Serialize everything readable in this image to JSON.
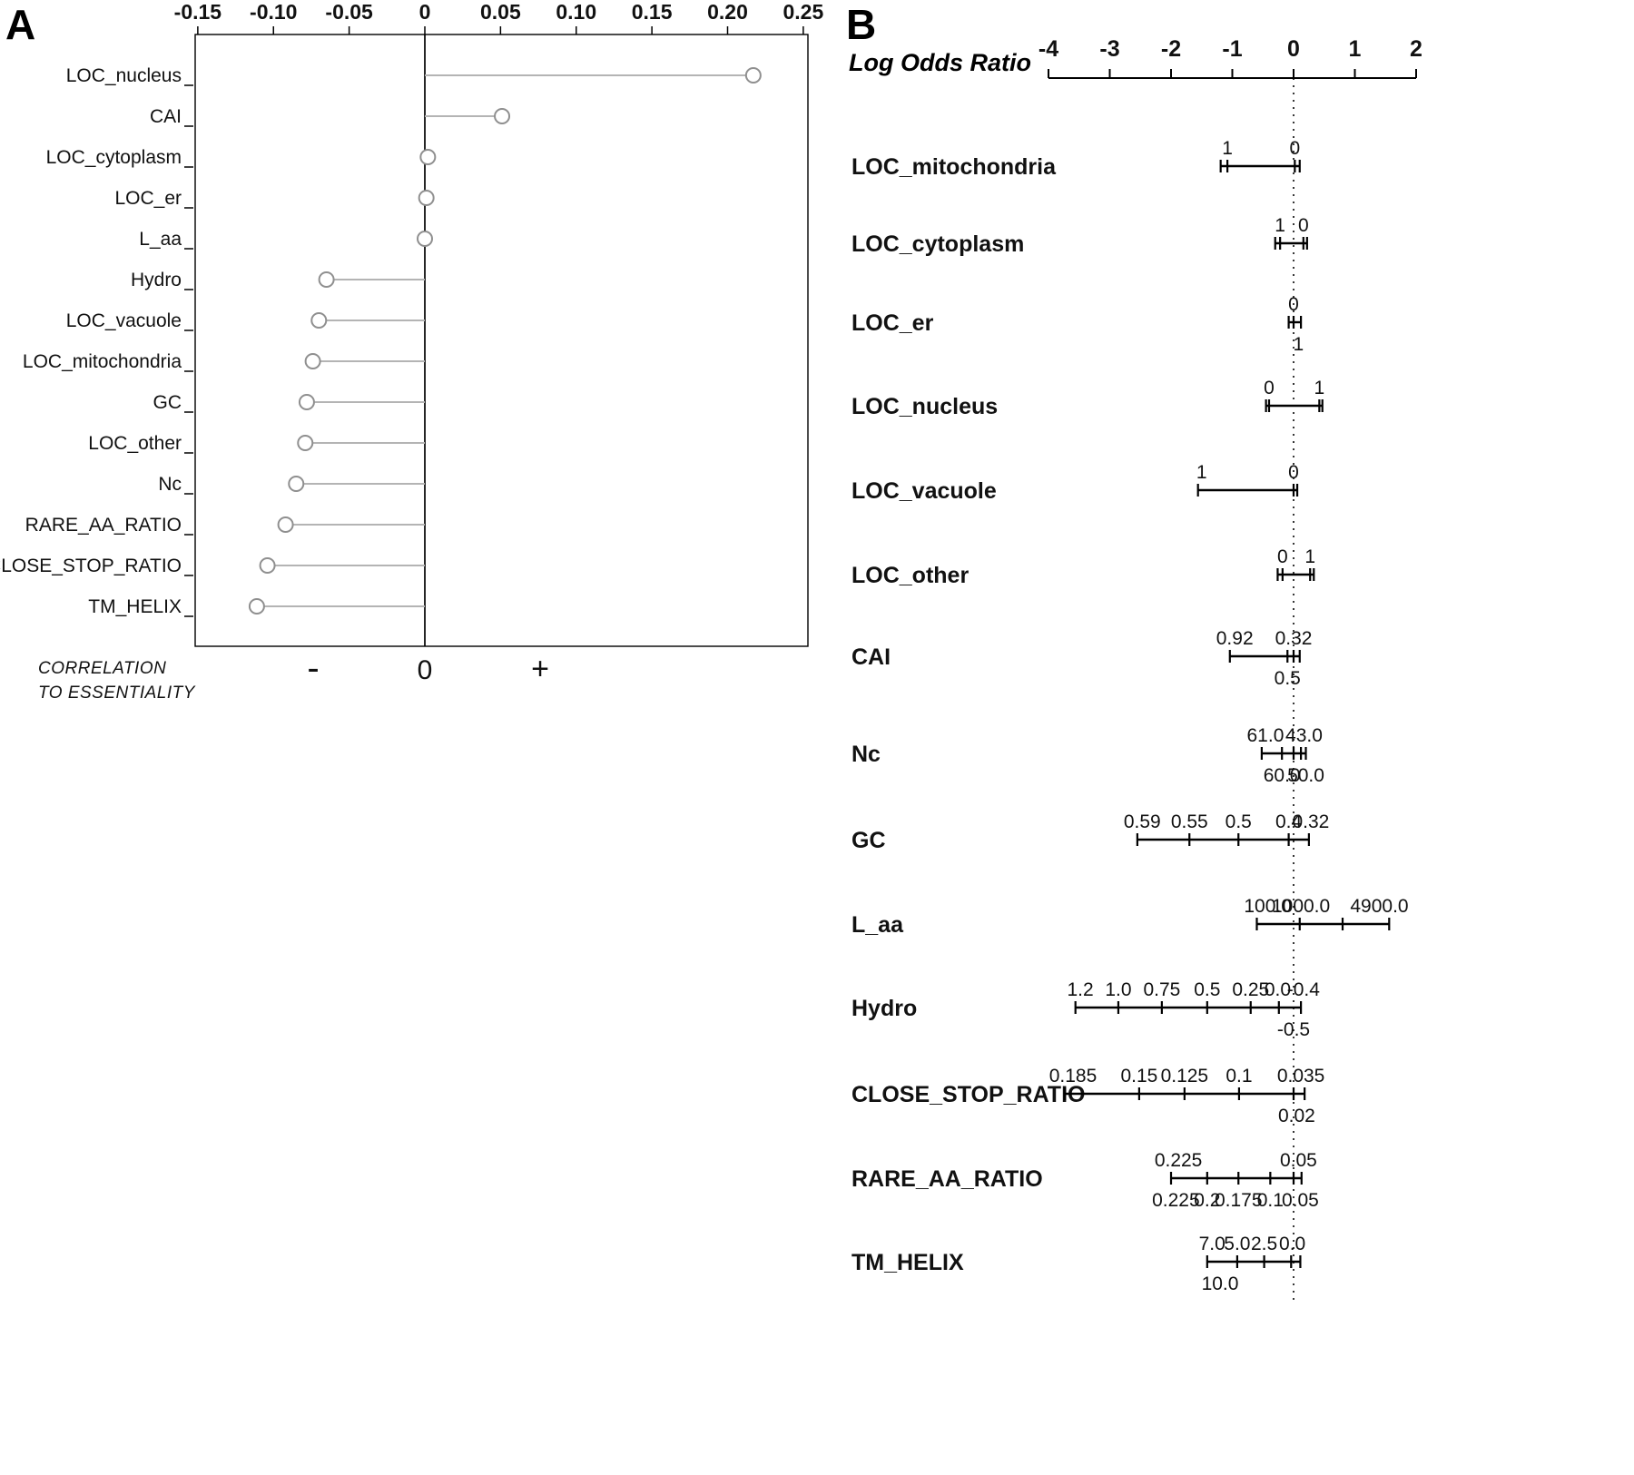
{
  "figure": {
    "panel_a_label": "A",
    "panel_b_label": "B"
  },
  "panel_a": {
    "caption_line1": "CORRELATION",
    "caption_line2": "TO ESSENTIALITY",
    "sign_minus": "-",
    "sign_zero": "0",
    "sign_plus": "+"
  },
  "panel_b": {
    "title": "Log Odds Ratio"
  },
  "colors": {
    "stem": "#b4b4b4",
    "marker_stroke": "#8f8f8f",
    "axis": "#000000"
  },
  "chart_data": [
    {
      "type": "scatter",
      "subtype": "horizontal-lollipop",
      "panel": "A",
      "title": "Correlation to essentiality",
      "xlabel": "CORRELATION TO ESSENTIALITY",
      "xlim": [
        -0.152,
        0.253
      ],
      "xticks": [
        -0.15,
        -0.1,
        -0.05,
        0,
        0.05,
        0.1,
        0.15,
        0.2,
        0.25
      ],
      "xtick_labels": [
        "-0.15",
        "-0.10",
        "-0.05",
        "0",
        "0.05",
        "0.10",
        "0.15",
        "0.20",
        "0.25"
      ],
      "grid": false,
      "categories": [
        "LOC_nucleus",
        "CAI",
        "LOC_cytoplasm",
        "LOC_er",
        "L_aa",
        "Hydro",
        "LOC_vacuole",
        "LOC_mitochondria",
        "GC",
        "LOC_other",
        "Nc",
        "RARE_AA_RATIO",
        "CLOSE_STOP_RATIO",
        "TM_HELIX"
      ],
      "values": [
        0.217,
        0.051,
        0.002,
        0.001,
        0.0,
        -0.065,
        -0.07,
        -0.074,
        -0.078,
        -0.079,
        -0.085,
        -0.092,
        -0.104,
        -0.111
      ]
    },
    {
      "type": "scatter",
      "subtype": "log-odds-interval-scales",
      "panel": "B",
      "title": "Log Odds Ratio",
      "xlim": [
        -4,
        2
      ],
      "xticks": [
        -4,
        -3,
        -2,
        -1,
        0,
        1,
        2
      ],
      "xtick_labels": [
        "-4",
        "-3",
        "-2",
        "-1",
        "0",
        "1",
        "2"
      ],
      "zero_reference_line": "dotted",
      "rows": [
        {
          "name": "LOC_mitochondria",
          "extent": [
            -1.19,
            0.1
          ],
          "ticks": [
            -1.19,
            -1.08,
            0.02,
            0.1
          ],
          "labels_above": [
            {
              "x": -1.08,
              "text": "1"
            },
            {
              "x": 0.02,
              "text": "0"
            }
          ],
          "labels_below": []
        },
        {
          "name": "LOC_cytoplasm",
          "extent": [
            -0.3,
            0.22
          ],
          "ticks": [
            -0.3,
            -0.22,
            0.16,
            0.22
          ],
          "labels_above": [
            {
              "x": -0.22,
              "text": "1"
            },
            {
              "x": 0.16,
              "text": "0"
            }
          ],
          "labels_below": []
        },
        {
          "name": "LOC_er",
          "extent": [
            -0.08,
            0.12
          ],
          "ticks": [
            -0.08,
            0.0,
            0.12
          ],
          "labels_above": [
            {
              "x": 0.0,
              "text": "0"
            }
          ],
          "labels_below": [
            {
              "x": 0.08,
              "text": "1"
            }
          ]
        },
        {
          "name": "LOC_nucleus",
          "extent": [
            -0.45,
            0.47
          ],
          "ticks": [
            -0.45,
            -0.4,
            0.42,
            0.47
          ],
          "labels_above": [
            {
              "x": -0.4,
              "text": "0"
            },
            {
              "x": 0.42,
              "text": "1"
            }
          ],
          "labels_below": []
        },
        {
          "name": "LOC_vacuole",
          "extent": [
            -1.56,
            0.06
          ],
          "ticks": [
            -1.56,
            0.0,
            0.06
          ],
          "labels_above": [
            {
              "x": -1.5,
              "text": "1"
            },
            {
              "x": 0.0,
              "text": "0"
            }
          ],
          "labels_below": []
        },
        {
          "name": "LOC_other",
          "extent": [
            -0.26,
            0.33
          ],
          "ticks": [
            -0.26,
            -0.18,
            0.27,
            0.33
          ],
          "labels_above": [
            {
              "x": -0.18,
              "text": "0"
            },
            {
              "x": 0.27,
              "text": "1"
            }
          ],
          "labels_below": []
        },
        {
          "name": "CAI",
          "extent": [
            -1.04,
            0.1
          ],
          "ticks": [
            -1.04,
            -0.1,
            0.0,
            0.1
          ],
          "labels_above": [
            {
              "x": -0.96,
              "text": "0.92"
            },
            {
              "x": 0.0,
              "text": "0.32"
            }
          ],
          "labels_below": [
            {
              "x": -0.1,
              "text": "0.5"
            }
          ]
        },
        {
          "name": "Nc",
          "extent": [
            -0.52,
            0.2
          ],
          "ticks": [
            -0.52,
            -0.19,
            0.0,
            0.12,
            0.2
          ],
          "labels_above": [
            {
              "x": -0.46,
              "text": "61.0"
            },
            {
              "x": 0.17,
              "text": "43.0"
            }
          ],
          "labels_below": [
            {
              "x": -0.19,
              "text": "60.0"
            },
            {
              "x": 0.2,
              "text": "50.0"
            }
          ]
        },
        {
          "name": "GC",
          "extent": [
            -2.55,
            0.25
          ],
          "ticks": [
            -2.55,
            -1.7,
            -0.9,
            -0.08,
            0.25
          ],
          "labels_above": [
            {
              "x": -2.47,
              "text": "0.59"
            },
            {
              "x": -1.7,
              "text": "0.55"
            },
            {
              "x": -0.9,
              "text": "0.5"
            },
            {
              "x": -0.08,
              "text": "0.4"
            },
            {
              "x": 0.28,
              "text": "0.32"
            }
          ],
          "labels_below": []
        },
        {
          "name": "L_aa",
          "extent": [
            -0.6,
            1.56
          ],
          "ticks": [
            -0.6,
            0.1,
            0.8,
            1.56
          ],
          "labels_above": [
            {
              "x": -0.42,
              "text": "100.0"
            },
            {
              "x": 0.12,
              "text": "1000.0"
            },
            {
              "x": 1.4,
              "text": "4900.0"
            }
          ],
          "labels_below": []
        },
        {
          "name": "Hydro",
          "extent": [
            -3.56,
            0.12
          ],
          "ticks": [
            -3.56,
            -2.86,
            -2.15,
            -1.41,
            -0.7,
            -0.24,
            0.12
          ],
          "labels_above": [
            {
              "x": -3.48,
              "text": "1.2"
            },
            {
              "x": -2.86,
              "text": "1.0"
            },
            {
              "x": -2.15,
              "text": "0.75"
            },
            {
              "x": -1.41,
              "text": "0.5"
            },
            {
              "x": -0.7,
              "text": "0.25"
            },
            {
              "x": -0.26,
              "text": "0.0"
            },
            {
              "x": 0.16,
              "text": "-0.4"
            }
          ],
          "labels_below": [
            {
              "x": 0.0,
              "text": "-0.5"
            }
          ]
        },
        {
          "name": "CLOSE_STOP_RATIO",
          "extent": [
            -3.73,
            0.18
          ],
          "ticks": [
            -3.73,
            -2.52,
            -1.78,
            -0.89,
            0.0,
            0.18
          ],
          "labels_above": [
            {
              "x": -3.6,
              "text": "0.185"
            },
            {
              "x": -2.52,
              "text": "0.15"
            },
            {
              "x": -1.78,
              "text": "0.125"
            },
            {
              "x": -0.89,
              "text": "0.1"
            },
            {
              "x": 0.12,
              "text": "0.035"
            }
          ],
          "labels_below": [
            {
              "x": 0.05,
              "text": "0.02"
            }
          ]
        },
        {
          "name": "RARE_AA_RATIO",
          "extent": [
            -2.0,
            0.13
          ],
          "ticks": [
            -2.0,
            -1.41,
            -0.9,
            -0.38,
            0.0,
            0.13
          ],
          "labels_above": [
            {
              "x": -1.88,
              "text": "0.225"
            },
            {
              "x": 0.08,
              "text": "0.05"
            }
          ],
          "labels_below": [
            {
              "x": -1.92,
              "text": "0.225"
            },
            {
              "x": -1.41,
              "text": "0.2"
            },
            {
              "x": -0.9,
              "text": "0.175"
            },
            {
              "x": -0.38,
              "text": "0.1"
            },
            {
              "x": 0.11,
              "text": "0.05"
            }
          ]
        },
        {
          "name": "TM_HELIX",
          "extent": [
            -1.41,
            0.11
          ],
          "ticks": [
            -1.41,
            -0.92,
            -0.48,
            -0.04,
            0.11
          ],
          "labels_above": [
            {
              "x": -1.33,
              "text": "7.0"
            },
            {
              "x": -0.92,
              "text": "5.0"
            },
            {
              "x": -0.48,
              "text": "2.5"
            },
            {
              "x": -0.02,
              "text": "0.0"
            }
          ],
          "labels_below": [
            {
              "x": -1.2,
              "text": "10.0"
            }
          ]
        }
      ]
    }
  ]
}
